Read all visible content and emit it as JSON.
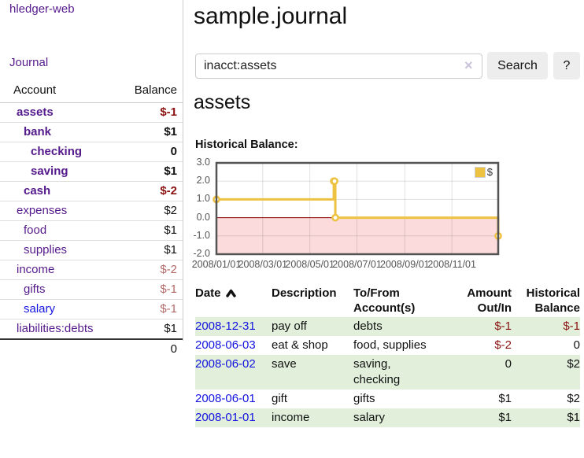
{
  "app": {
    "title": "hledger-web"
  },
  "colors": {
    "purple": "#551a8b",
    "blue": "#1414e0",
    "neg": "#8b1212",
    "neg-muted": "#b26868",
    "stripe": "#e1efdb",
    "chart-line": "#edc240",
    "chart-neg-fill": "#fbdbdb",
    "zero-line": "#8b0000"
  },
  "sidebar": {
    "journal_link": "Journal",
    "table": {
      "account_header": "Account",
      "balance_header": "Balance",
      "rows": [
        {
          "account": "assets",
          "depth": 1,
          "bold": true,
          "link_style": "purple",
          "balance": "$-1",
          "balance_style": "neg-strong"
        },
        {
          "account": "bank",
          "depth": 2,
          "bold": true,
          "link_style": "purple",
          "balance": "$1",
          "balance_style": "plain"
        },
        {
          "account": "checking",
          "depth": 3,
          "bold": true,
          "link_style": "purple",
          "balance": "0",
          "balance_style": "plain"
        },
        {
          "account": "saving",
          "depth": 3,
          "bold": true,
          "link_style": "purple",
          "balance": "$1",
          "balance_style": "plain"
        },
        {
          "account": "cash",
          "depth": 2,
          "bold": true,
          "link_style": "purple",
          "balance": "$-2",
          "balance_style": "neg-strong"
        },
        {
          "account": "expenses",
          "depth": 1,
          "bold": false,
          "link_style": "purple",
          "balance": "$2",
          "balance_style": "plain"
        },
        {
          "account": "food",
          "depth": 2,
          "bold": false,
          "link_style": "purple",
          "balance": "$1",
          "balance_style": "plain"
        },
        {
          "account": "supplies",
          "depth": 2,
          "bold": false,
          "link_style": "purple",
          "balance": "$1",
          "balance_style": "plain"
        },
        {
          "account": "income",
          "depth": 1,
          "bold": false,
          "link_style": "purple",
          "balance": "$-2",
          "balance_style": "neg-muted"
        },
        {
          "account": "gifts",
          "depth": 2,
          "bold": false,
          "link_style": "purple",
          "balance": "$-1",
          "balance_style": "neg-muted"
        },
        {
          "account": "salary",
          "depth": 2,
          "bold": false,
          "link_style": "blue",
          "balance": "$-1",
          "balance_style": "neg-muted"
        },
        {
          "account": "liabilities:debts",
          "depth": 1,
          "bold": false,
          "link_style": "purple",
          "balance": "$1",
          "balance_style": "plain"
        }
      ],
      "total": "0"
    }
  },
  "main": {
    "title": "sample.journal",
    "search": {
      "value": "inacct:assets",
      "clear_icon": "×",
      "button": "Search",
      "help_button": "?"
    },
    "account_heading": "assets",
    "chart_label": "Historical Balance:"
  },
  "chart_data": {
    "type": "line",
    "title": "Historical Balance",
    "step": true,
    "series": [
      {
        "name": "$",
        "points": [
          [
            "2008-01-01",
            1
          ],
          [
            "2008-06-01",
            2
          ],
          [
            "2008-06-02",
            2
          ],
          [
            "2008-06-03",
            0
          ],
          [
            "2008-12-31",
            -1
          ]
        ]
      }
    ],
    "x_range": [
      "2008-01-01",
      "2008-12-31"
    ],
    "x_ticks": [
      "2008/01/01",
      "2008/03/01",
      "2008/05/01",
      "2008/07/01",
      "2008/09/01",
      "2008/11/01"
    ],
    "y_ticks": [
      3.0,
      2.0,
      1.0,
      0.0,
      -1.0,
      -2.0
    ],
    "ylim": [
      -2,
      3
    ],
    "grid": true,
    "legend_position": "top-right",
    "negative_region_shaded": true
  },
  "register": {
    "headers": {
      "date": "Date",
      "description": "Description",
      "tofrom": "To/From Account(s)",
      "amount": "Amount Out/In",
      "historical": "Historical Balance"
    },
    "rows": [
      {
        "date": "2008-12-31",
        "description": "pay off",
        "accounts": "debts",
        "amount": "$-1",
        "amount_neg": true,
        "historical": "$-1",
        "historical_neg": true
      },
      {
        "date": "2008-06-03",
        "description": "eat & shop",
        "accounts": "food, supplies",
        "amount": "$-2",
        "amount_neg": true,
        "historical": "0",
        "historical_neg": false
      },
      {
        "date": "2008-06-02",
        "description": "save",
        "accounts": "saving, checking",
        "amount": "0",
        "amount_neg": false,
        "historical": "$2",
        "historical_neg": false
      },
      {
        "date": "2008-06-01",
        "description": "gift",
        "accounts": "gifts",
        "amount": "$1",
        "amount_neg": false,
        "historical": "$2",
        "historical_neg": false
      },
      {
        "date": "2008-01-01",
        "description": "income",
        "accounts": "salary",
        "amount": "$1",
        "amount_neg": false,
        "historical": "$1",
        "historical_neg": false
      }
    ]
  }
}
